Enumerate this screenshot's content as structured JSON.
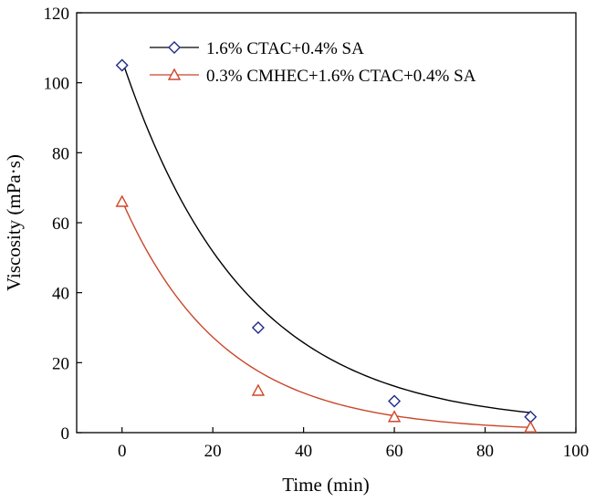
{
  "chart_data": {
    "type": "scatter",
    "title": "",
    "xlabel": "Time (min)",
    "ylabel": "Viscosity (mPa·s)",
    "xlim": [
      -10,
      100
    ],
    "ylim": [
      0,
      120
    ],
    "xticks": [
      0,
      20,
      40,
      60,
      80,
      100
    ],
    "yticks": [
      0,
      20,
      40,
      60,
      80,
      100,
      120
    ],
    "grid": false,
    "legend_position": "top-right",
    "series": [
      {
        "name": "1.6% CTAC+0.4% SA",
        "marker": "diamond",
        "color": "#1f2a8a",
        "fit_color": "#000000",
        "x": [
          0,
          30,
          60,
          90
        ],
        "y": [
          105,
          30,
          9,
          4.5
        ],
        "fit": {
          "type": "exponential",
          "a": 104.5,
          "k": 0.0371,
          "c": 2.0
        }
      },
      {
        "name": "0.3% CMHEC+1.6% CTAC+0.4% SA",
        "marker": "triangle",
        "color": "#d0472a",
        "fit_color": "#c8472a",
        "x": [
          0,
          30,
          60,
          90
        ],
        "y": [
          66,
          12,
          4.5,
          1.5
        ],
        "fit": {
          "type": "exponential",
          "a": 66.0,
          "k": 0.0447,
          "c": 0.3
        }
      }
    ]
  }
}
